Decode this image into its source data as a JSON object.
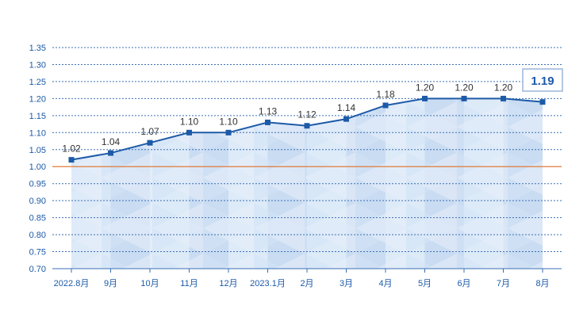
{
  "chart_data": {
    "type": "line",
    "categories": [
      "2022.8月",
      "9月",
      "10月",
      "11月",
      "12月",
      "2023.1月",
      "2月",
      "3月",
      "4月",
      "5月",
      "6月",
      "7月",
      "8月"
    ],
    "values": [
      1.02,
      1.04,
      1.07,
      1.1,
      1.1,
      1.13,
      1.12,
      1.14,
      1.18,
      1.2,
      1.2,
      1.2,
      1.19
    ],
    "data_labels": [
      "1.02",
      "1.04",
      "1.07",
      "1.10",
      "1.10",
      "1.13",
      "1.12",
      "1.14",
      "1.18",
      "1.20",
      "1.20",
      "1.20",
      ""
    ],
    "ylim": [
      0.7,
      1.35
    ],
    "yticks": [
      "0.70",
      "0.75",
      "0.80",
      "0.85",
      "0.90",
      "0.95",
      "1.00",
      "1.05",
      "1.10",
      "1.15",
      "1.20",
      "1.25",
      "1.30",
      "1.35"
    ],
    "reference_line": 1.0,
    "latest_callout": "1.19",
    "grid": true,
    "colors": {
      "line": "#1d5aa8",
      "axis_text": "#1d5aa8",
      "grid": "#3a6fb5",
      "reference": "#e07b39",
      "fill_light": "#ddeaf8",
      "fill_dark": "#c9dcf2",
      "callout_border": "#9ab6d8"
    }
  }
}
